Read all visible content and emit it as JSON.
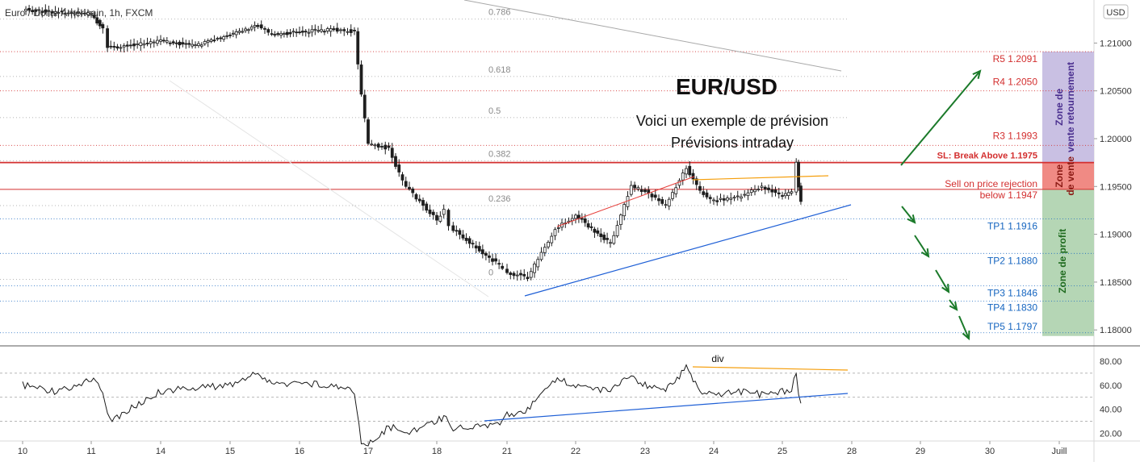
{
  "header": {
    "symbol_label": "Euro / Dollar Américain, 1h, FXCM",
    "currency_badge": "USD"
  },
  "annotations": {
    "pair_title": "EUR/USD",
    "subtitle_1": "Voici un exemple de prévision",
    "subtitle_2": "Prévisions intraday",
    "stop_loss": "SL: Break Above 1.1975",
    "sell_text_1": "Sell on price rejection",
    "sell_text_2": "below 1.1947",
    "zone_reversal_1": "Zone de",
    "zone_reversal_2": "vente retournement",
    "zone_sell_1": "Zone",
    "zone_sell_2": "de vente",
    "zone_profit": "Zone de profit",
    "divergence": "div"
  },
  "colors": {
    "background": "#ffffff",
    "candle_up": "#1e1e1e",
    "candle_down": "#1e1e1e",
    "resistance": "#d32f2f",
    "support": "#1565c0",
    "fib": "#9e9e9e",
    "projection_arrow": "#1b7a2a",
    "zone_reversal": "#c9c0e3",
    "zone_sell": "#f08a84",
    "zone_profit": "#b5d6b5",
    "wedge_upper": "#e53935",
    "wedge_lower": "#1e5fd6",
    "divergence_line": "#f59e0b",
    "rsi_line": "#1a1a1a"
  },
  "chart_data": [
    {
      "type": "candlestick",
      "title": "Euro / Dollar Américain, 1h, FXCM",
      "x_ticks": [
        "10",
        "11",
        "14",
        "15",
        "16",
        "17",
        "18",
        "21",
        "22",
        "23",
        "24",
        "25",
        "28",
        "29",
        "30",
        "Juill"
      ],
      "y_ticks": [
        1.18,
        1.185,
        1.19,
        1.195,
        1.2,
        1.205,
        1.21
      ],
      "y_tick_labels": [
        "1.18000",
        "1.18500",
        "1.19000",
        "1.19500",
        "1.20000",
        "1.20500",
        "1.21000"
      ],
      "ylim": [
        1.1785,
        1.2145
      ],
      "close_path": [
        [
          "10",
          1.2135
        ],
        [
          "11",
          1.213
        ],
        [
          "11.5",
          1.2115
        ],
        [
          "11.7",
          1.2095
        ],
        [
          "14",
          1.2102
        ],
        [
          "14.5",
          1.2097
        ],
        [
          "15",
          1.2108
        ],
        [
          "15.4",
          1.2118
        ],
        [
          "15.6",
          1.2108
        ],
        [
          "16",
          1.2112
        ],
        [
          "16.5",
          1.2114
        ],
        [
          "16.8",
          1.2112
        ],
        [
          "16.9",
          1.2045
        ],
        [
          "17",
          1.1995
        ],
        [
          "17.3",
          1.199
        ],
        [
          "17.5",
          1.1955
        ],
        [
          "17.8",
          1.193
        ],
        [
          "18",
          1.1915
        ],
        [
          "18.3",
          1.1925
        ],
        [
          "18.5",
          1.191
        ],
        [
          "18.7",
          1.1905
        ],
        [
          "20.8",
          1.1865
        ],
        [
          "21",
          1.186
        ],
        [
          "21.3",
          1.1855
        ],
        [
          "21.7",
          1.1905
        ],
        [
          "22",
          1.192
        ],
        [
          "22.5",
          1.189
        ],
        [
          "22.8",
          1.195
        ],
        [
          "23",
          1.1945
        ],
        [
          "23.3",
          1.193
        ],
        [
          "23.6",
          1.197
        ],
        [
          "23.8",
          1.1945
        ],
        [
          "24",
          1.1935
        ],
        [
          "24.4",
          1.194
        ],
        [
          "24.7",
          1.195
        ],
        [
          "25",
          1.194
        ],
        [
          "25.4",
          1.1945
        ],
        [
          "25.6",
          1.1975
        ],
        [
          "25.7",
          1.195
        ],
        [
          "25.8",
          1.1935
        ]
      ],
      "horizontal_levels": [
        {
          "name": "R5",
          "value": 1.2091,
          "label": "R5 1.2091"
        },
        {
          "name": "R4",
          "value": 1.205,
          "label": "R4 1.2050"
        },
        {
          "name": "R3",
          "value": 1.1993,
          "label": "R3 1.1993"
        },
        {
          "name": "SL",
          "value": 1.1975,
          "label": "SL: Break Above 1.1975"
        },
        {
          "name": "Sell",
          "value": 1.1947,
          "label": "Sell on price rejection below 1.1947"
        },
        {
          "name": "TP1",
          "value": 1.1916,
          "label": "TP1 1.1916"
        },
        {
          "name": "TP2",
          "value": 1.188,
          "label": "TP2 1.1880"
        },
        {
          "name": "TP3",
          "value": 1.1846,
          "label": "TP3 1.1846"
        },
        {
          "name": "TP4",
          "value": 1.183,
          "label": "TP4 1.1830"
        },
        {
          "name": "TP5",
          "value": 1.1797,
          "label": "TP5 1.1797"
        }
      ],
      "fibonacci": [
        {
          "ratio": "0.786",
          "value": 1.2125
        },
        {
          "ratio": "0.618",
          "value": 1.2065
        },
        {
          "ratio": "0.5",
          "value": 1.2022
        },
        {
          "ratio": "0.382",
          "value": 1.1977
        },
        {
          "ratio": "0.236",
          "value": 1.193
        },
        {
          "ratio": "0",
          "value": 1.1853
        }
      ]
    },
    {
      "type": "line",
      "indicator": "RSI",
      "y_ticks": [
        20,
        40,
        60,
        80
      ],
      "y_tick_labels": [
        "20.00",
        "40.00",
        "60.00",
        "80.00"
      ],
      "ylim": [
        15,
        90
      ],
      "guides": [
        30,
        50,
        70
      ],
      "points": [
        [
          "10",
          60
        ],
        [
          "10.5",
          55
        ],
        [
          "11",
          65
        ],
        [
          "11.5",
          55
        ],
        [
          "11.8",
          30
        ],
        [
          "14",
          55
        ],
        [
          "14.5",
          58
        ],
        [
          "15",
          60
        ],
        [
          "15.4",
          70
        ],
        [
          "15.6",
          60
        ],
        [
          "16",
          62
        ],
        [
          "16.5",
          60
        ],
        [
          "16.8",
          55
        ],
        [
          "16.9",
          12
        ],
        [
          "17",
          10
        ],
        [
          "17.3",
          25
        ],
        [
          "17.6",
          22
        ],
        [
          "18",
          30
        ],
        [
          "18.4",
          35
        ],
        [
          "18.7",
          25
        ],
        [
          "20.8",
          28
        ],
        [
          "21",
          35
        ],
        [
          "21.3",
          40
        ],
        [
          "21.7",
          65
        ],
        [
          "22",
          60
        ],
        [
          "22.5",
          55
        ],
        [
          "22.8",
          68
        ],
        [
          "23",
          60
        ],
        [
          "23.3",
          55
        ],
        [
          "23.6",
          74
        ],
        [
          "23.8",
          55
        ],
        [
          "24",
          52
        ],
        [
          "24.4",
          55
        ],
        [
          "24.7",
          52
        ],
        [
          "25",
          55
        ],
        [
          "25.4",
          57
        ],
        [
          "25.6",
          70
        ],
        [
          "25.7",
          50
        ],
        [
          "25.8",
          45
        ]
      ]
    }
  ]
}
